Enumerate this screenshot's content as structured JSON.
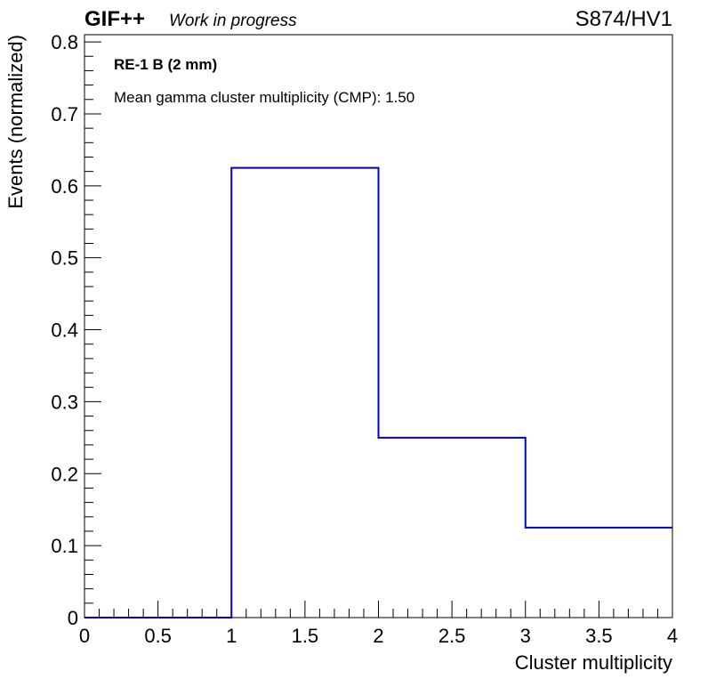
{
  "header": {
    "brand": "GIF++",
    "status": "Work in progress",
    "run_label": "S874/HV1"
  },
  "annotations": {
    "detector": "RE-1 B (2 mm)",
    "summary": "Mean gamma cluster multiplicity (CMP): 1.50"
  },
  "chart_data": {
    "type": "bar",
    "style": "step-histogram",
    "xlabel": "Cluster multiplicity",
    "ylabel": "Events (normalized)",
    "xlim": [
      0,
      4
    ],
    "ylim": [
      0,
      0.81
    ],
    "bin_edges": [
      0,
      1,
      2,
      3,
      4
    ],
    "values": [
      0.0,
      0.625,
      0.25,
      0.125
    ],
    "x_tick_labels": [
      "0",
      "0.5",
      "1",
      "1.5",
      "2",
      "2.5",
      "3",
      "3.5",
      "4"
    ],
    "y_tick_labels": [
      "0",
      "0.1",
      "0.2",
      "0.3",
      "0.4",
      "0.5",
      "0.6",
      "0.7",
      "0.8"
    ],
    "line_color": "#0000cc",
    "grid": false,
    "legend": "none"
  }
}
